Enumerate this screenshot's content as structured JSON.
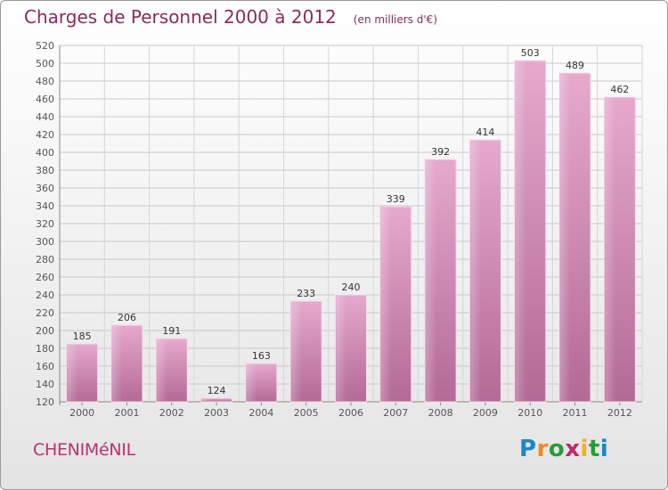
{
  "header": {
    "title": "Charges de Personnel 2000 à 2012",
    "subtitle": "(en milliers d'€)"
  },
  "footer": {
    "commune": "CHENIMéNIL",
    "logo_text": "Proxiti"
  },
  "colors": {
    "bar": "#d58bb7",
    "title": "#8a2a5c",
    "axis": "#555555",
    "grid": "#c8c8c8"
  },
  "chart_data": {
    "type": "bar",
    "title": "Charges de Personnel 2000 à 2012",
    "subtitle": "(en milliers d'€)",
    "categories": [
      "2000",
      "2001",
      "2002",
      "2003",
      "2004",
      "2005",
      "2006",
      "2007",
      "2008",
      "2009",
      "2010",
      "2011",
      "2012"
    ],
    "values": [
      185,
      206,
      191,
      124,
      163,
      233,
      240,
      339,
      392,
      414,
      503,
      489,
      462
    ],
    "ylim": [
      120,
      520
    ],
    "ytick_step": 20,
    "grid": true
  }
}
